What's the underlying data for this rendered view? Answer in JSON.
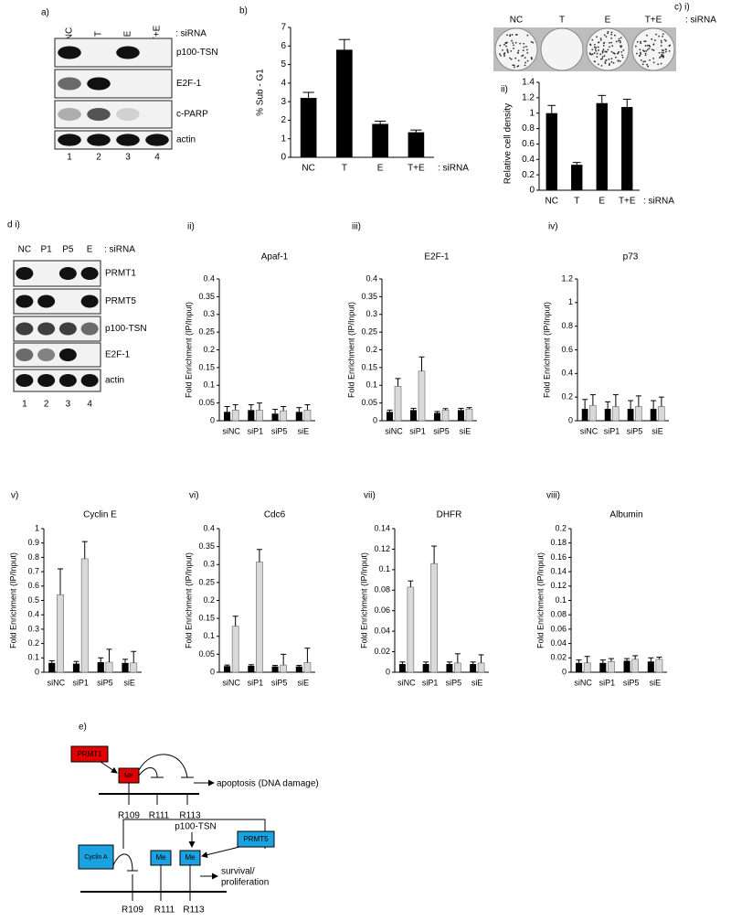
{
  "blot_a": {
    "panel": "a)",
    "lanes": [
      "NC",
      "T",
      "E",
      "T+E"
    ],
    "suffix": ": siRNA",
    "rows": [
      "p100-TSN",
      "E2F-1",
      "c-PARP",
      "actin"
    ],
    "lane_numbers": [
      1,
      2,
      3,
      4
    ]
  },
  "plates": {
    "panel": "c) i)",
    "lanes": [
      "NC",
      "T",
      "E",
      "T+E"
    ],
    "suffix": ": siRNA"
  },
  "blot_d": {
    "panel": "d i)",
    "lanes": [
      "NC",
      "P1",
      "P5",
      "E"
    ],
    "suffix": ": siRNA",
    "rows": [
      "PRMT1",
      "PRMT5",
      "p100-TSN",
      "E2F-1",
      "actin"
    ],
    "lane_numbers": [
      1,
      2,
      3,
      4
    ]
  },
  "chart_data": [
    {
      "type": "bar",
      "panel": "b)",
      "y_label": "% Sub - G1",
      "categories": [
        "NC",
        "T",
        "E",
        "T+E"
      ],
      "x_suffix": ": siRNA",
      "values": [
        3.2,
        5.8,
        1.8,
        1.35
      ],
      "errors": [
        0.3,
        0.55,
        0.15,
        0.12
      ],
      "color": "#000000",
      "ylim": [
        0,
        7
      ],
      "yticks": [
        0,
        1,
        2,
        3,
        4,
        5,
        6,
        7
      ]
    },
    {
      "type": "bar",
      "panel": "ii)",
      "y_label": "Relative cell density",
      "categories": [
        "NC",
        "T",
        "E",
        "T+E"
      ],
      "x_suffix": ": siRNA",
      "values": [
        1.0,
        0.33,
        1.13,
        1.08
      ],
      "errors": [
        0.1,
        0.03,
        0.1,
        0.1
      ],
      "color": "#000000",
      "ylim": [
        0,
        1.4
      ],
      "yticks": [
        0,
        0.2,
        0.4,
        0.6,
        0.8,
        1,
        1.2,
        1.4
      ]
    },
    {
      "type": "grouped-bar",
      "panel": "ii)",
      "title": "Apaf-1",
      "y_label": "Fold Enrichment (IP/Input)",
      "categories": [
        "siNC",
        "siP1",
        "siP5",
        "siE"
      ],
      "series": [
        {
          "color": "#000000",
          "values": [
            0.025,
            0.03,
            0.02,
            0.025
          ],
          "errors": [
            0.015,
            0.015,
            0.012,
            0.012
          ]
        },
        {
          "color": "#d9d9d9",
          "values": [
            0.03,
            0.03,
            0.028,
            0.03
          ],
          "errors": [
            0.015,
            0.02,
            0.012,
            0.015
          ]
        }
      ],
      "ylim": [
        0,
        0.4
      ],
      "yticks": [
        0,
        0.05,
        0.1,
        0.15,
        0.2,
        0.25,
        0.3,
        0.35,
        0.4
      ]
    },
    {
      "type": "grouped-bar",
      "panel": "iii)",
      "title": "E2F-1",
      "y_label": "Fold Enrichment (IP/Input)",
      "categories": [
        "siNC",
        "siP1",
        "siP5",
        "siE"
      ],
      "series": [
        {
          "color": "#000000",
          "values": [
            0.025,
            0.03,
            0.022,
            0.03
          ],
          "errors": [
            0.005,
            0.005,
            0.004,
            0.005
          ]
        },
        {
          "color": "#d9d9d9",
          "values": [
            0.097,
            0.14,
            0.03,
            0.033
          ],
          "errors": [
            0.022,
            0.04,
            0.004,
            0.004
          ]
        }
      ],
      "ylim": [
        0,
        0.4
      ],
      "yticks": [
        0,
        0.05,
        0.1,
        0.15,
        0.2,
        0.25,
        0.3,
        0.35,
        0.4
      ]
    },
    {
      "type": "grouped-bar",
      "panel": "iv)",
      "title": "p73",
      "y_label": "Fold Enrichment (IP/Input)",
      "categories": [
        "siNC",
        "siP1",
        "siP5",
        "siE"
      ],
      "series": [
        {
          "color": "#000000",
          "values": [
            0.1,
            0.1,
            0.1,
            0.1
          ],
          "errors": [
            0.08,
            0.06,
            0.07,
            0.07
          ]
        },
        {
          "color": "#d9d9d9",
          "values": [
            0.13,
            0.12,
            0.12,
            0.12
          ],
          "errors": [
            0.09,
            0.1,
            0.09,
            0.08
          ]
        }
      ],
      "ylim": [
        0,
        1.2
      ],
      "yticks": [
        0,
        0.2,
        0.4,
        0.6,
        0.8,
        1,
        1.2
      ]
    },
    {
      "type": "grouped-bar",
      "panel": "v)",
      "title": "Cyclin E",
      "y_label": "Fold Enrichment (IP/Input)",
      "categories": [
        "siNC",
        "siP1",
        "siP5",
        "siE"
      ],
      "series": [
        {
          "color": "#000000",
          "values": [
            0.065,
            0.06,
            0.07,
            0.065
          ],
          "errors": [
            0.015,
            0.015,
            0.03,
            0.025
          ]
        },
        {
          "color": "#d9d9d9",
          "values": [
            0.54,
            0.79,
            0.07,
            0.065
          ],
          "errors": [
            0.18,
            0.12,
            0.09,
            0.08
          ]
        }
      ],
      "ylim": [
        0,
        1
      ],
      "yticks": [
        0,
        0.1,
        0.2,
        0.3,
        0.4,
        0.5,
        0.6,
        0.7,
        0.8,
        0.9,
        1
      ]
    },
    {
      "type": "grouped-bar",
      "panel": "vi)",
      "title": "Cdc6",
      "y_label": "Fold Enrichment (IP/Input)",
      "categories": [
        "siNC",
        "siP1",
        "siP5",
        "siE"
      ],
      "series": [
        {
          "color": "#000000",
          "values": [
            0.017,
            0.018,
            0.016,
            0.016
          ],
          "errors": [
            0.003,
            0.003,
            0.003,
            0.003
          ]
        },
        {
          "color": "#d9d9d9",
          "values": [
            0.128,
            0.307,
            0.02,
            0.027
          ],
          "errors": [
            0.028,
            0.035,
            0.03,
            0.04
          ]
        }
      ],
      "ylim": [
        0,
        0.4
      ],
      "yticks": [
        0,
        0.05,
        0.1,
        0.15,
        0.2,
        0.25,
        0.3,
        0.35,
        0.4
      ]
    },
    {
      "type": "grouped-bar",
      "panel": "vii)",
      "title": "DHFR",
      "y_label": "Fold Enrichment (IP/Input)",
      "categories": [
        "siNC",
        "siP1",
        "siP5",
        "siE"
      ],
      "series": [
        {
          "color": "#000000",
          "values": [
            0.008,
            0.008,
            0.008,
            0.008
          ],
          "errors": [
            0.002,
            0.002,
            0.002,
            0.002
          ]
        },
        {
          "color": "#d9d9d9",
          "values": [
            0.083,
            0.106,
            0.009,
            0.009
          ],
          "errors": [
            0.006,
            0.017,
            0.009,
            0.008
          ]
        }
      ],
      "ylim": [
        0,
        0.14
      ],
      "yticks": [
        0,
        0.02,
        0.04,
        0.06,
        0.08,
        0.1,
        0.12,
        0.14
      ]
    },
    {
      "type": "grouped-bar",
      "panel": "viii)",
      "title": "Albumin",
      "y_label": "Fold Enrichment (IP/Input)",
      "categories": [
        "siNC",
        "siP1",
        "siP5",
        "siE"
      ],
      "series": [
        {
          "color": "#000000",
          "values": [
            0.013,
            0.013,
            0.016,
            0.015
          ],
          "errors": [
            0.004,
            0.004,
            0.003,
            0.005
          ]
        },
        {
          "color": "#d9d9d9",
          "values": [
            0.013,
            0.015,
            0.018,
            0.018
          ],
          "errors": [
            0.009,
            0.004,
            0.005,
            0.003
          ]
        }
      ],
      "ylim": [
        0,
        0.2
      ],
      "yticks": [
        0,
        0.02,
        0.04,
        0.06,
        0.08,
        0.1,
        0.12,
        0.14,
        0.16,
        0.18,
        0.2
      ]
    }
  ],
  "diagram": {
    "panel": "e)",
    "top": {
      "enzyme": "PRMT1",
      "mark": "Me",
      "sites": [
        "R109",
        "R111",
        "R113"
      ],
      "outcome": "apoptosis (DNA damage)"
    },
    "bottom": {
      "partner": "p100-TSN",
      "enzyme": "PRMT5",
      "inhibitor": "Cyclin A",
      "marks": [
        "Me",
        "Me"
      ],
      "sites": [
        "R109",
        "R111",
        "R113"
      ],
      "outcome": [
        "survival/",
        "proliferation"
      ]
    }
  }
}
